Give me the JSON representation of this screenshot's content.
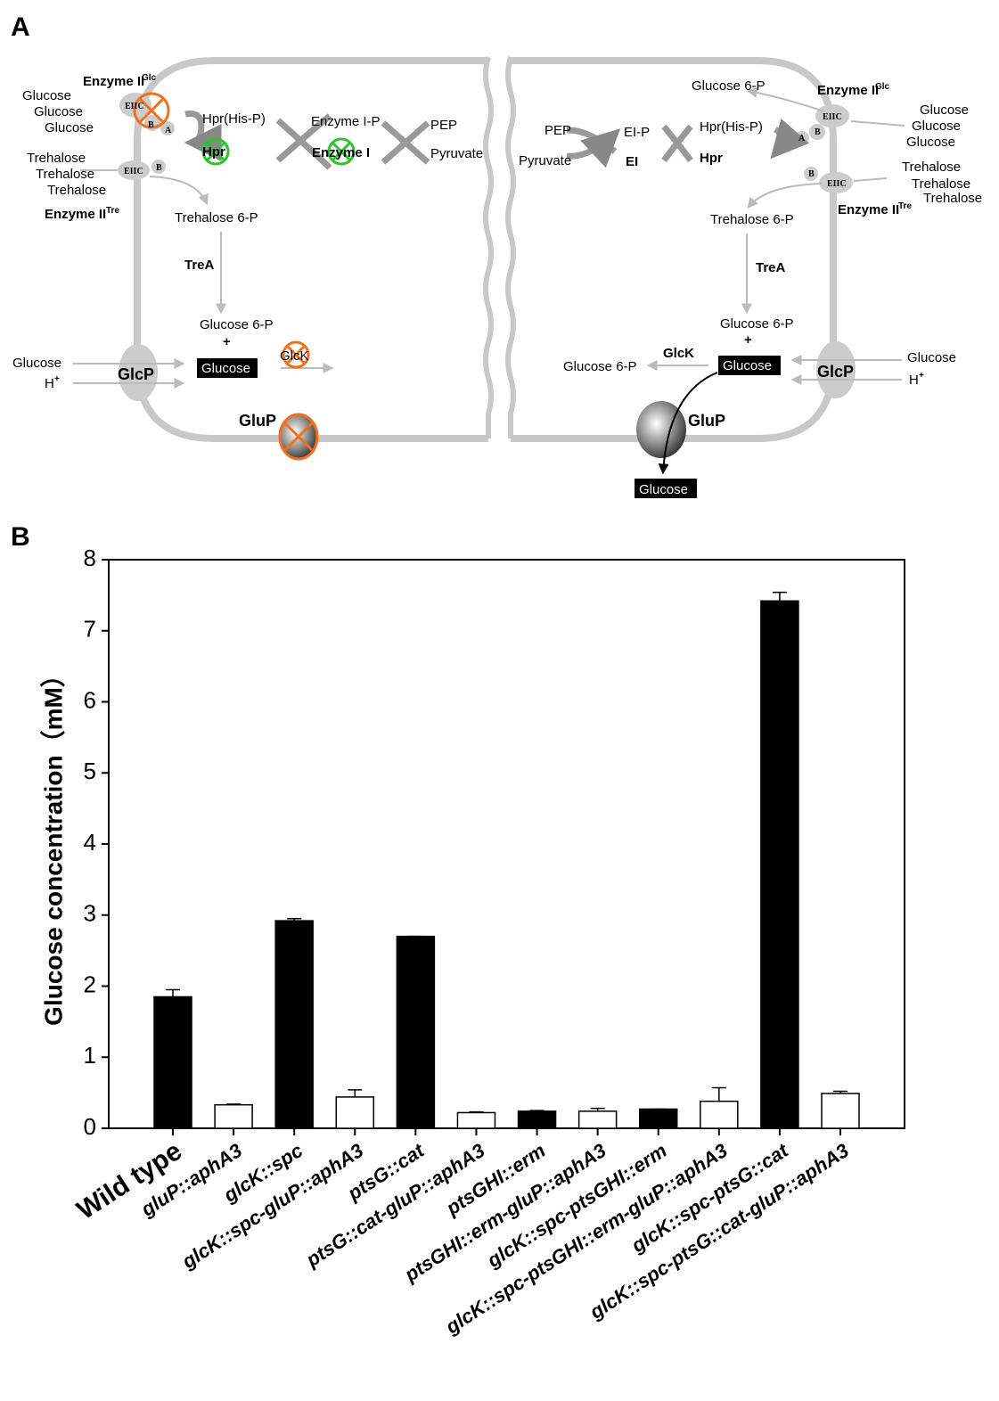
{
  "panel_labels": [
    "A",
    "B"
  ],
  "diagram": {
    "texts": [
      "Enzyme II",
      "Glc",
      "Glucose",
      "Glucose",
      "Glucose",
      "EIIC",
      "B",
      "A",
      "Hpr(His-P)",
      "Enzyme I-P",
      "PEP",
      "Hpr",
      "Enzyme I",
      "Pyruvate",
      "Trehalose",
      "Trehalose",
      "Trehalose",
      "EIIC",
      "B",
      "Enzyme II",
      "Tre",
      "Trehalose 6-P",
      "TreA",
      "Glucose 6-P",
      "+",
      "Glucose",
      "GlcK",
      "Glucose",
      "H",
      "+",
      "GlcP",
      "GluP",
      "Glucose 6-P",
      "Enzyme II",
      "Glc",
      "Glucose",
      "Glucose",
      "Glucose",
      "EIIC",
      "A",
      "B",
      "PEP",
      "EI-P",
      "Hpr(His-P)",
      "Pyruvate",
      "EI",
      "Hpr",
      "Trehalose",
      "Trehalose",
      "Trehalose",
      "B",
      "EIIC",
      "Enzyme II",
      "Tre",
      "Trehalose 6-P",
      "TreA",
      "Glucose 6-P",
      "+",
      "GlcK",
      "Glucose 6-P",
      "Glucose",
      "GlcP",
      "Glucose",
      "H",
      "+",
      "GluP",
      "Glucose"
    ]
  },
  "chart_data": {
    "type": "bar",
    "ylabel": "Glucose concentration（mM）",
    "categories": [
      "Wild type",
      "gluP::aphA3",
      "glcK::spc",
      "glcK::spc-gluP::aphA3",
      "ptsG::cat",
      "ptsG::cat-gluP::aphA3",
      "ptsGHI::erm",
      "ptsGHI::erm-gluP::aphA3",
      "glcK::spc-ptsGHI::erm",
      "glcK::spc-ptsGHI::erm-gluP::aphA3",
      "glcK::spc-ptsG::cat",
      "glcK::spc-ptsG::cat-gluP::aphA3"
    ],
    "values": [
      1.85,
      0.33,
      2.92,
      0.44,
      2.7,
      0.22,
      0.24,
      0.24,
      0.27,
      0.38,
      7.42,
      0.49
    ],
    "errors": [
      0.1,
      0.01,
      0.03,
      0.1,
      0,
      0.01,
      0.01,
      0.04,
      0,
      0.19,
      0.12,
      0.03
    ],
    "colors": [
      "#000000",
      "#ffffff",
      "#000000",
      "#ffffff",
      "#000000",
      "#ffffff",
      "#000000",
      "#ffffff",
      "#000000",
      "#ffffff",
      "#000000",
      "#ffffff"
    ],
    "ylim": [
      0,
      8
    ],
    "yticks": [
      0,
      1,
      2,
      3,
      4,
      5,
      6,
      7,
      8
    ],
    "grid": false
  }
}
